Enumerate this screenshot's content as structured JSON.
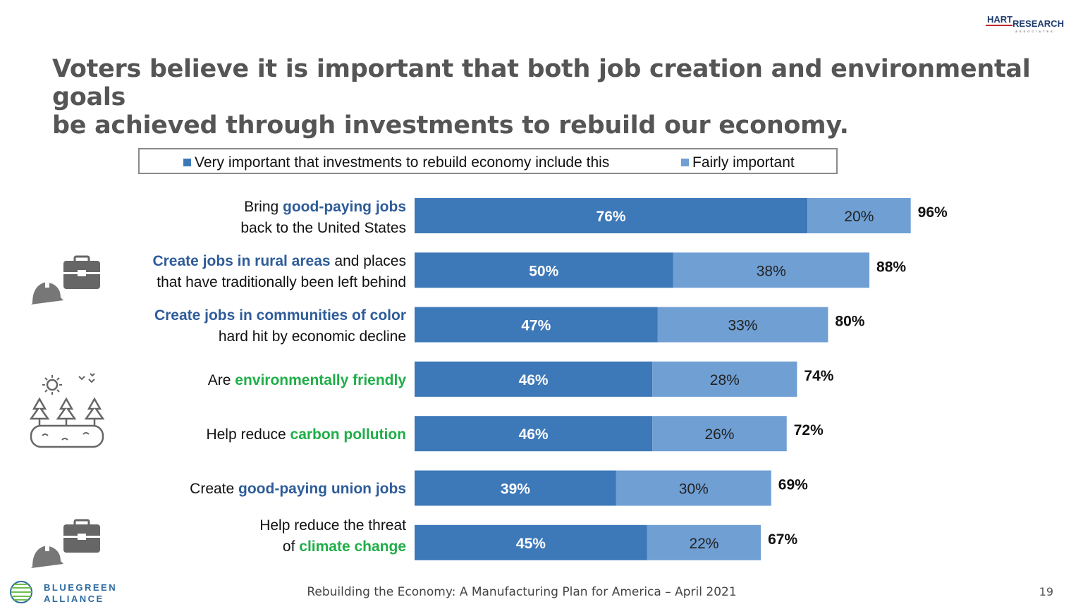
{
  "title_line1": "Voters believe it is important that both job creation and environmental goals",
  "title_line2": "be achieved through investments to rebuild our economy.",
  "brand": {
    "part1": "HART",
    "part2": "RESEARCH",
    "sub": "ASSOCIATES"
  },
  "legend": {
    "very": "Very important that investments to rebuild economy include this",
    "fairly": "Fairly important"
  },
  "rows": [
    {
      "pre": "Bring ",
      "hl": "good-paying jobs",
      "hl_color": "blue",
      "post": "",
      "line2": "back to the United States"
    },
    {
      "pre": "",
      "hl": "Create jobs in rural areas",
      "hl_color": "blue",
      "post": " and places",
      "line2": "that have traditionally been left behind"
    },
    {
      "pre": "",
      "hl": "Create jobs in communities of color",
      "hl_color": "blue",
      "post": "",
      "line2": "hard hit by economic decline"
    },
    {
      "pre": "Are ",
      "hl": "environmentally friendly",
      "hl_color": "green",
      "post": "",
      "line2": ""
    },
    {
      "pre": "Help reduce ",
      "hl": "carbon pollution",
      "hl_color": "green",
      "post": "",
      "line2": ""
    },
    {
      "pre": "Create ",
      "hl": "good-paying union jobs",
      "hl_color": "blue",
      "post": "",
      "line2": ""
    },
    {
      "pre": "Help reduce the threat",
      "hl": "",
      "hl_color": "green",
      "post": "",
      "line2_pre": "of ",
      "line2_hl": "climate change",
      "line2": ""
    }
  ],
  "chart_data": {
    "type": "bar",
    "orientation": "horizontal",
    "stacked": true,
    "categories": [
      "Bring good-paying jobs back to the United States",
      "Create jobs in rural areas and places that have traditionally been left behind",
      "Create jobs in communities of color hard hit by economic decline",
      "Are environmentally friendly",
      "Help reduce carbon pollution",
      "Create good-paying union jobs",
      "Help reduce the threat of climate change"
    ],
    "series": [
      {
        "name": "Very important that investments to rebuild economy include this",
        "color": "#3d78b8",
        "values": [
          76,
          50,
          47,
          46,
          46,
          39,
          45
        ]
      },
      {
        "name": "Fairly important",
        "color": "#6f9fd3",
        "values": [
          20,
          38,
          33,
          28,
          26,
          30,
          22
        ]
      }
    ],
    "totals": [
      96,
      88,
      80,
      74,
      72,
      69,
      67
    ],
    "value_suffix": "%",
    "xlim": [
      0,
      100
    ],
    "legend_position": "top",
    "grid": false
  },
  "colors": {
    "title": "#555555",
    "dark_bar": "#3d78b8",
    "light_bar": "#6f9fd3",
    "blue_text": "#2e5c9a",
    "green_text": "#1fae48"
  },
  "footer": "Rebuilding the Economy: A Manufacturing Plan for America – April 2021",
  "page_number": "19",
  "logo": {
    "line1": "BLUEGREEN",
    "line2": "ALLIANCE"
  }
}
